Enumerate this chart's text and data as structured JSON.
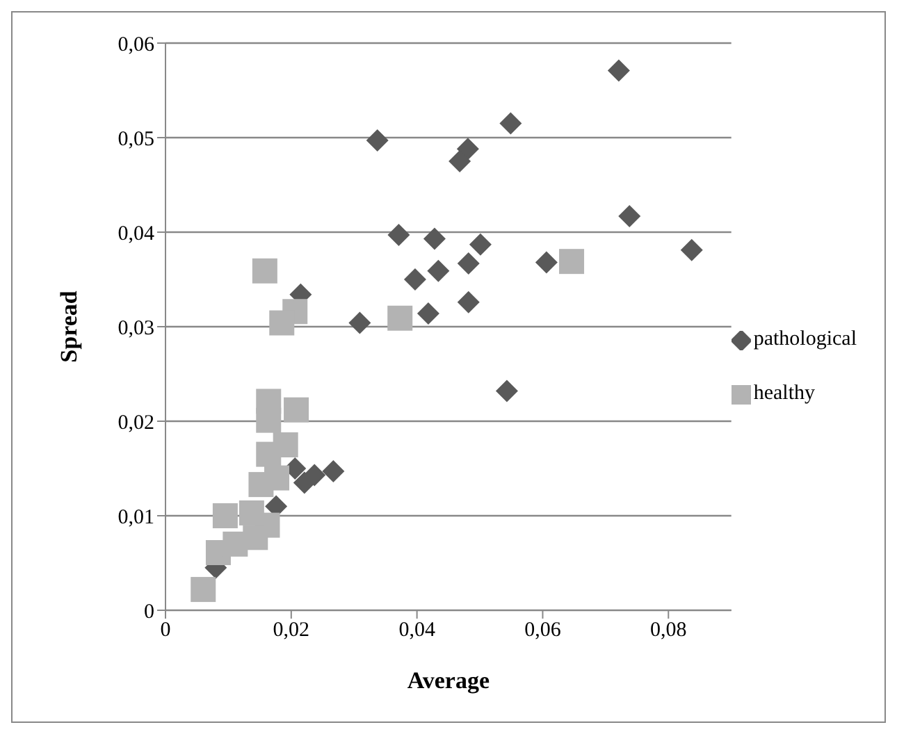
{
  "chart_data": {
    "type": "scatter",
    "xlabel": "Average",
    "ylabel": "Spread",
    "xlim": [
      0,
      0.09
    ],
    "xticks": [
      0,
      {
        "value": 0.02,
        "label": "0,02"
      },
      {
        "value": 0.04,
        "label": "0,04"
      },
      {
        "value": 0.06,
        "label": "0,06"
      },
      {
        "value": 0.08,
        "label": "0,08"
      }
    ],
    "ylim": [
      0,
      0.06
    ],
    "yticks": [
      0,
      {
        "value": 0.01,
        "label": "0,01"
      },
      {
        "value": 0.02,
        "label": "0,02"
      },
      {
        "value": 0.03,
        "label": "0,03"
      },
      {
        "value": 0.04,
        "label": "0,04"
      },
      {
        "value": 0.05,
        "label": "0,05"
      },
      {
        "value": 0.06,
        "label": "0,06"
      }
    ],
    "grid": "y",
    "legend": "right",
    "series": [
      {
        "name": "pathological",
        "color": "#595959",
        "marker": "diamond",
        "x": [
          0.0721,
          0.0337,
          0.0549,
          0.0481,
          0.0468,
          0.0738,
          0.0837,
          0.0606,
          0.0543,
          0.0371,
          0.0428,
          0.0501,
          0.0397,
          0.0434,
          0.0482,
          0.0482,
          0.0418,
          0.0309,
          0.0215,
          0.0237,
          0.0267,
          0.0221,
          0.0206,
          0.0176,
          0.008
        ],
        "values": [
          0.0571,
          0.0497,
          0.0515,
          0.0488,
          0.0475,
          0.0417,
          0.0381,
          0.0368,
          0.0232,
          0.0397,
          0.0393,
          0.0387,
          0.035,
          0.0359,
          0.0367,
          0.0326,
          0.0314,
          0.0304,
          0.0334,
          0.0143,
          0.0147,
          0.0135,
          0.015,
          0.011,
          0.0045
        ]
      },
      {
        "name": "healthy",
        "color": "#b3b3b3",
        "marker": "square",
        "x": [
          0.0158,
          0.0206,
          0.0185,
          0.0373,
          0.0646,
          0.0164,
          0.0208,
          0.0164,
          0.0191,
          0.0164,
          0.0177,
          0.0152,
          0.0162,
          0.0143,
          0.0095,
          0.0137,
          null,
          0.0084,
          0.0111,
          null,
          0.006
        ],
        "values": [
          0.0359,
          0.0316,
          0.0304,
          0.0309,
          0.0369,
          0.0221,
          0.0212,
          0.0201,
          0.0175,
          0.0165,
          0.014,
          0.0133,
          0.009,
          0.0077,
          0.01,
          0.0103,
          null,
          0.0061,
          0.007,
          null,
          0.0022
        ]
      }
    ]
  }
}
